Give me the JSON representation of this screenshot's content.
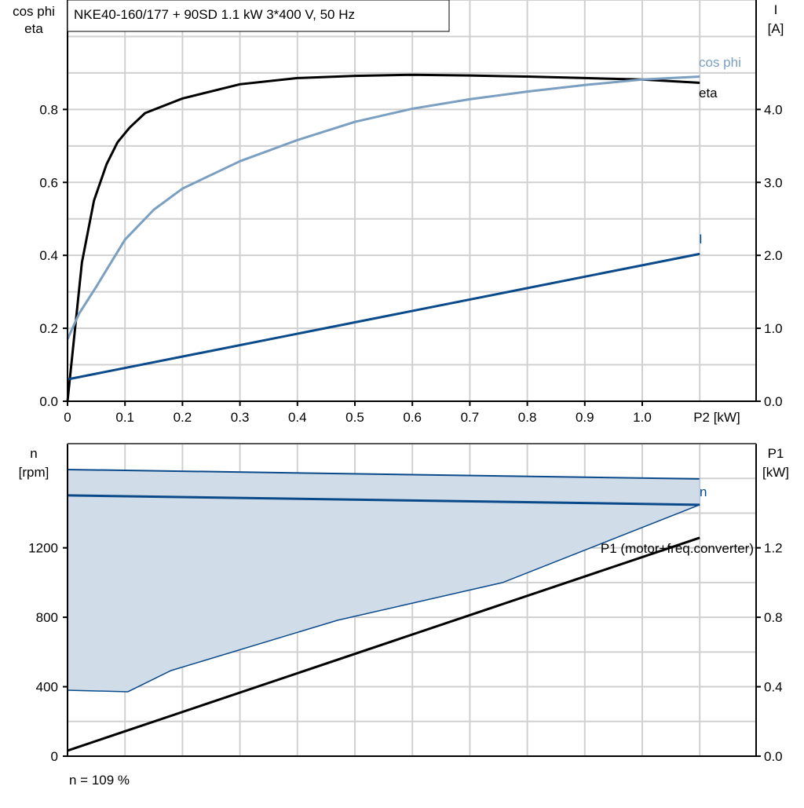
{
  "chart_data": [
    {
      "type": "line",
      "title": "NKE40-160/177 + 90SD   1.1 kW   3*400 V, 50 Hz",
      "xlabel": "P2 [kW]",
      "ylabel_left": [
        "cos phi",
        "eta"
      ],
      "ylabel_right": [
        "I",
        "[A]"
      ],
      "xlim": [
        0,
        1.2
      ],
      "ylim_left": [
        0,
        1.1
      ],
      "ylim_right": [
        0,
        5.5
      ],
      "grid": true,
      "x_ticks": [
        "0",
        "0.1",
        "0.2",
        "0.3",
        "0.4",
        "0.5",
        "0.6",
        "0.7",
        "0.8",
        "0.9",
        "1.0"
      ],
      "y_ticks_left": [
        "0.0",
        "0.2",
        "0.4",
        "0.6",
        "0.8"
      ],
      "y_ticks_right": [
        "0.0",
        "1.0",
        "2.0",
        "3.0",
        "4.0"
      ],
      "series": [
        {
          "name": "eta",
          "axis": "left",
          "color": "#000000",
          "x": [
            0,
            0.025,
            0.046,
            0.068,
            0.087,
            0.108,
            0.135,
            0.2,
            0.3,
            0.4,
            0.5,
            0.6,
            0.7,
            0.8,
            0.9,
            1.0,
            1.1
          ],
          "y": [
            0,
            0.38,
            0.55,
            0.65,
            0.71,
            0.75,
            0.79,
            0.83,
            0.869,
            0.886,
            0.892,
            0.895,
            0.893,
            0.89,
            0.886,
            0.882,
            0.873
          ]
        },
        {
          "name": "cos phi",
          "axis": "left",
          "color": "#7a9fc0",
          "x": [
            0,
            0.02,
            0.05,
            0.1,
            0.15,
            0.2,
            0.3,
            0.4,
            0.5,
            0.6,
            0.7,
            0.8,
            0.9,
            1.0,
            1.1
          ],
          "y": [
            0.17,
            0.24,
            0.314,
            0.443,
            0.525,
            0.583,
            0.658,
            0.716,
            0.766,
            0.802,
            0.828,
            0.849,
            0.867,
            0.882,
            0.89
          ]
        },
        {
          "name": "I",
          "axis": "right",
          "color": "#0a4a8a",
          "x": [
            0,
            1.1
          ],
          "y": [
            0.3,
            2.02
          ]
        }
      ]
    },
    {
      "type": "area",
      "xlim": [
        0,
        1.2
      ],
      "ylim_left": [
        0,
        1800
      ],
      "ylim_right": [
        0,
        1.8
      ],
      "ylabel_left": [
        "n",
        "[rpm]"
      ],
      "ylabel_right": [
        "P1",
        "[kW]"
      ],
      "grid": true,
      "y_ticks_left": [
        "0",
        "400",
        "800",
        "1200"
      ],
      "y_ticks_right": [
        "0.0",
        "0.4",
        "0.8",
        "1.2"
      ],
      "fill_color": "#d0dce8",
      "range_upper": {
        "x": [
          0,
          1.1
        ],
        "y": [
          1651,
          1597
        ]
      },
      "range_lower": {
        "x": [
          0,
          0.105,
          0.18,
          0.47,
          0.757,
          1.1
        ],
        "y": [
          380,
          371,
          493,
          783,
          1000,
          1448
        ]
      },
      "series": [
        {
          "name": "n",
          "axis": "left",
          "color": "#0a4a8a",
          "x": [
            0,
            1.1
          ],
          "y": [
            1502,
            1448
          ]
        },
        {
          "name": "P1 (motor+freq.converter)",
          "axis": "right",
          "color": "#000000",
          "x": [
            0,
            1.1
          ],
          "y": [
            0.032,
            1.258
          ]
        }
      ],
      "footnote": "n = 109 %"
    }
  ]
}
